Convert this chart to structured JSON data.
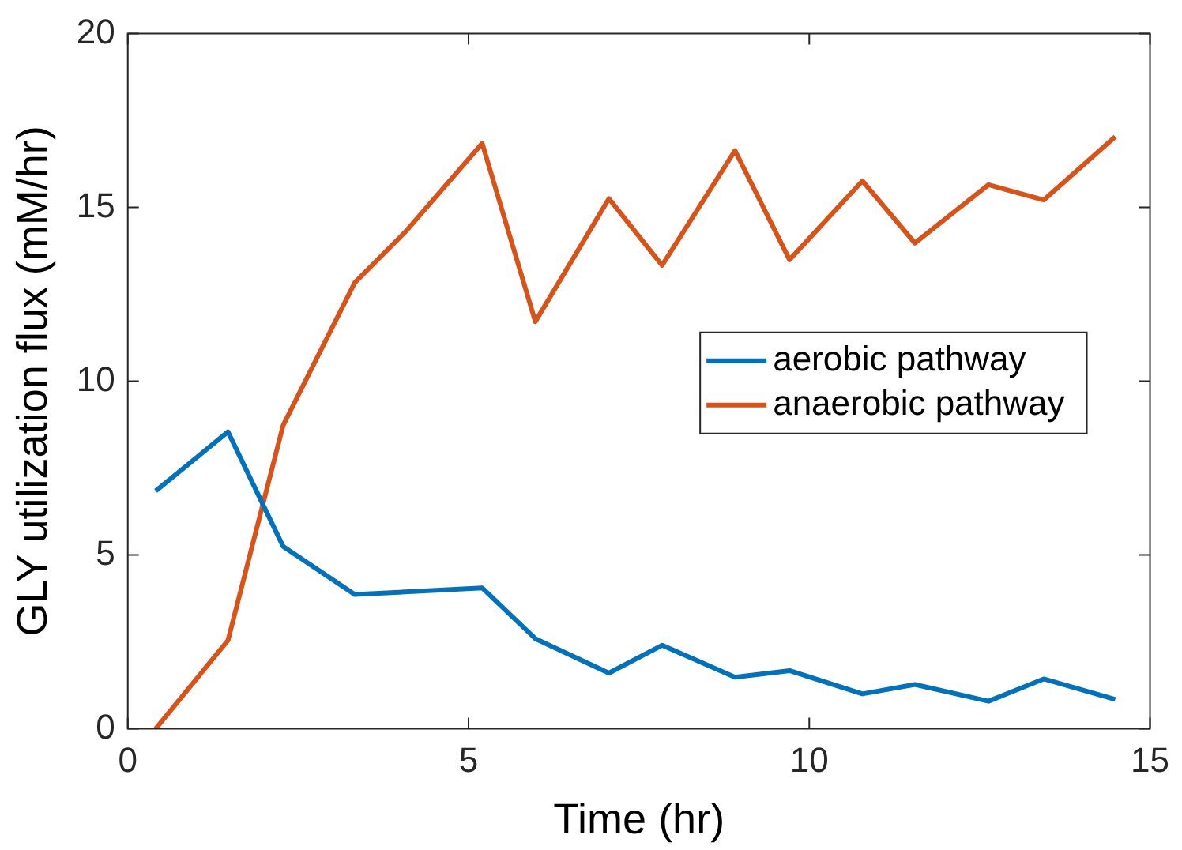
{
  "chart_data": {
    "type": "line",
    "xlabel": "Time (hr)",
    "ylabel": "GLY utilization flux (mM/hr)",
    "xlim": [
      0,
      15
    ],
    "xticks": [
      0,
      5,
      10,
      15
    ],
    "ylim": [
      0,
      20
    ],
    "yticks": [
      0,
      5,
      10,
      15,
      20
    ],
    "grid": false,
    "legend": "right",
    "marker": "none",
    "line_style": "solid",
    "series": [
      {
        "name": "aerobic pathway",
        "color": "#0072bd",
        "x": [
          0.41,
          1.47,
          2.28,
          3.33,
          5.2,
          5.98,
          7.06,
          7.84,
          8.91,
          9.71,
          10.78,
          11.55,
          12.63,
          13.44,
          14.49
        ],
        "values": [
          6.84,
          8.54,
          5.24,
          3.86,
          4.05,
          2.59,
          1.6,
          2.4,
          1.48,
          1.67,
          1.0,
          1.27,
          0.79,
          1.43,
          0.84
        ]
      },
      {
        "name": "anaerobic pathway",
        "color": "#d95319",
        "x": [
          0.41,
          1.47,
          2.28,
          3.33,
          4.09,
          5.2,
          5.98,
          7.06,
          7.84,
          8.91,
          9.71,
          10.78,
          11.55,
          12.63,
          13.44,
          14.49
        ],
        "values": [
          0,
          2.54,
          8.73,
          12.83,
          14.33,
          16.84,
          11.71,
          15.25,
          13.33,
          16.63,
          13.49,
          15.76,
          13.97,
          15.65,
          15.21,
          17.03
        ]
      }
    ]
  }
}
